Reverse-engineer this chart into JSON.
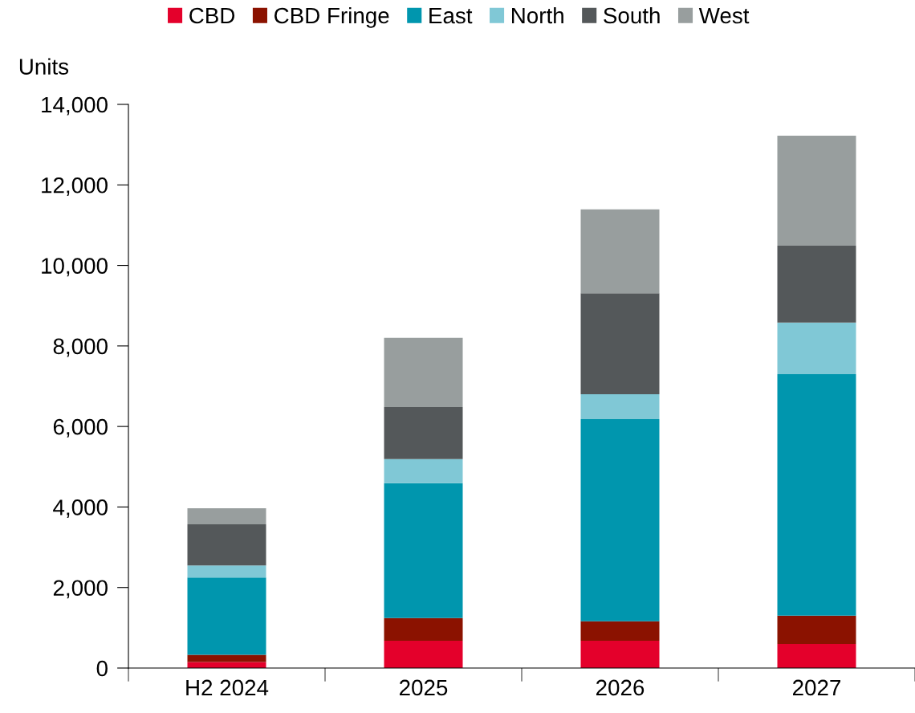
{
  "chart_data": {
    "type": "bar",
    "stacked": true,
    "ylabel": "Units",
    "categories": [
      "H2 2024",
      "2025",
      "2026",
      "2027"
    ],
    "series": [
      {
        "name": "CBD",
        "color": "#e4002b",
        "values": [
          150,
          680,
          680,
          600
        ]
      },
      {
        "name": "CBD Fringe",
        "color": "#8b1200",
        "values": [
          180,
          560,
          480,
          700
        ]
      },
      {
        "name": "East",
        "color": "#0096ae",
        "values": [
          1920,
          3350,
          5020,
          6000
        ]
      },
      {
        "name": "North",
        "color": "#80c8d6",
        "values": [
          300,
          600,
          620,
          1280
        ]
      },
      {
        "name": "South",
        "color": "#54585a",
        "values": [
          1020,
          1290,
          2510,
          1910
        ]
      },
      {
        "name": "West",
        "color": "#989e9e",
        "values": [
          400,
          1720,
          2080,
          2730
        ]
      }
    ],
    "ylim": [
      0,
      14000
    ],
    "yticks": [
      {
        "value": 0,
        "label": "0"
      },
      {
        "value": 2000,
        "label": "2,000"
      },
      {
        "value": 4000,
        "label": "4,000"
      },
      {
        "value": 6000,
        "label": "6,000"
      },
      {
        "value": 8000,
        "label": "8,000"
      },
      {
        "value": 10000,
        "label": "10,000"
      },
      {
        "value": 12000,
        "label": "12,000"
      },
      {
        "value": 14000,
        "label": "14,000"
      }
    ],
    "grid": false,
    "legend": "top"
  }
}
